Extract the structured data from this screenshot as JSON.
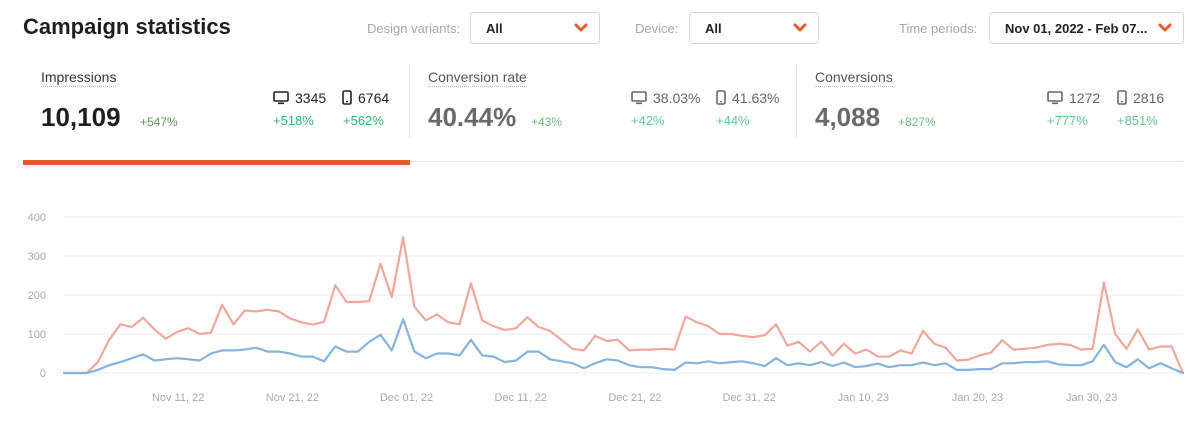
{
  "header": {
    "title": "Campaign statistics",
    "filters": [
      {
        "label": "Design variants:",
        "value": "All"
      },
      {
        "label": "Device:",
        "value": "All"
      },
      {
        "label": "Time periods:",
        "value": "Nov 01, 2022 - Feb 07..."
      }
    ]
  },
  "kpis": [
    {
      "label": "Impressions",
      "value": "10,109",
      "delta": "+547%",
      "desktop": {
        "value": "3345",
        "delta": "+518%"
      },
      "mobile": {
        "value": "6764",
        "delta": "+562%"
      }
    },
    {
      "label": "Conversion rate",
      "value": "40.44%",
      "delta": "+43%",
      "desktop": {
        "value": "38.03%",
        "delta": "+42%"
      },
      "mobile": {
        "value": "41.63%",
        "delta": "+44%"
      }
    },
    {
      "label": "Conversions",
      "value": "4,088",
      "delta": "+827%",
      "desktop": {
        "value": "1272",
        "delta": "+777%"
      },
      "mobile": {
        "value": "2816",
        "delta": "+851%"
      }
    }
  ],
  "colors": {
    "accent": "#e35b2c",
    "positive": "#2fb86f",
    "series_total": "#f0a89a",
    "series_desktop": "#86b2de"
  },
  "icons": {
    "desktop": "desktop-icon",
    "mobile": "mobile-icon",
    "dropdown": "chevron-down-icon"
  },
  "chart_data": {
    "type": "line",
    "ylim": [
      0,
      400
    ],
    "yticks": [
      0,
      100,
      200,
      300,
      400
    ],
    "xticks": [
      "Nov 11, 22",
      "Nov 21, 22",
      "Dec 01, 22",
      "Dec 11, 22",
      "Dec 21, 22",
      "Dec 31, 22",
      "Jan 10, 23",
      "Jan 20, 23",
      "Jan 30, 23"
    ],
    "x_start": "2022-11-01",
    "x_end": "2023-02-07",
    "grid": true,
    "series": [
      {
        "values": [
          0,
          0,
          0,
          28,
          85,
          125,
          118,
          142,
          112,
          88,
          105,
          115,
          100,
          103,
          175,
          125,
          160,
          158,
          162,
          158,
          140,
          130,
          124,
          131,
          225,
          182,
          182,
          184,
          280,
          195,
          348,
          170,
          135,
          150,
          130,
          125,
          230,
          135,
          120,
          110,
          115,
          143,
          118,
          108,
          85,
          62,
          58,
          95,
          82,
          85,
          58,
          60,
          60,
          62,
          60,
          145,
          130,
          120,
          100,
          100,
          95,
          92,
          97,
          125,
          70,
          80,
          55,
          80,
          45,
          75,
          50,
          60,
          42,
          42,
          58,
          50,
          108,
          75,
          65,
          32,
          34,
          45,
          52,
          84,
          60,
          62,
          65,
          72,
          75,
          72,
          60,
          62,
          232,
          100,
          62,
          112,
          60,
          68,
          68,
          0
        ]
      },
      {
        "values": [
          0,
          0,
          0,
          8,
          20,
          28,
          38,
          48,
          32,
          35,
          38,
          35,
          32,
          50,
          58,
          58,
          60,
          65,
          55,
          55,
          50,
          42,
          42,
          30,
          68,
          55,
          55,
          80,
          98,
          58,
          138,
          55,
          38,
          50,
          50,
          45,
          85,
          45,
          42,
          28,
          32,
          55,
          55,
          35,
          30,
          25,
          12,
          25,
          35,
          32,
          20,
          15,
          15,
          10,
          8,
          27,
          25,
          30,
          25,
          28,
          30,
          25,
          18,
          38,
          20,
          25,
          20,
          28,
          18,
          27,
          15,
          18,
          24,
          15,
          20,
          20,
          27,
          20,
          25,
          8,
          8,
          10,
          10,
          25,
          25,
          28,
          28,
          30,
          22,
          20,
          20,
          30,
          72,
          28,
          15,
          35,
          12,
          25,
          12,
          0
        ]
      }
    ]
  }
}
